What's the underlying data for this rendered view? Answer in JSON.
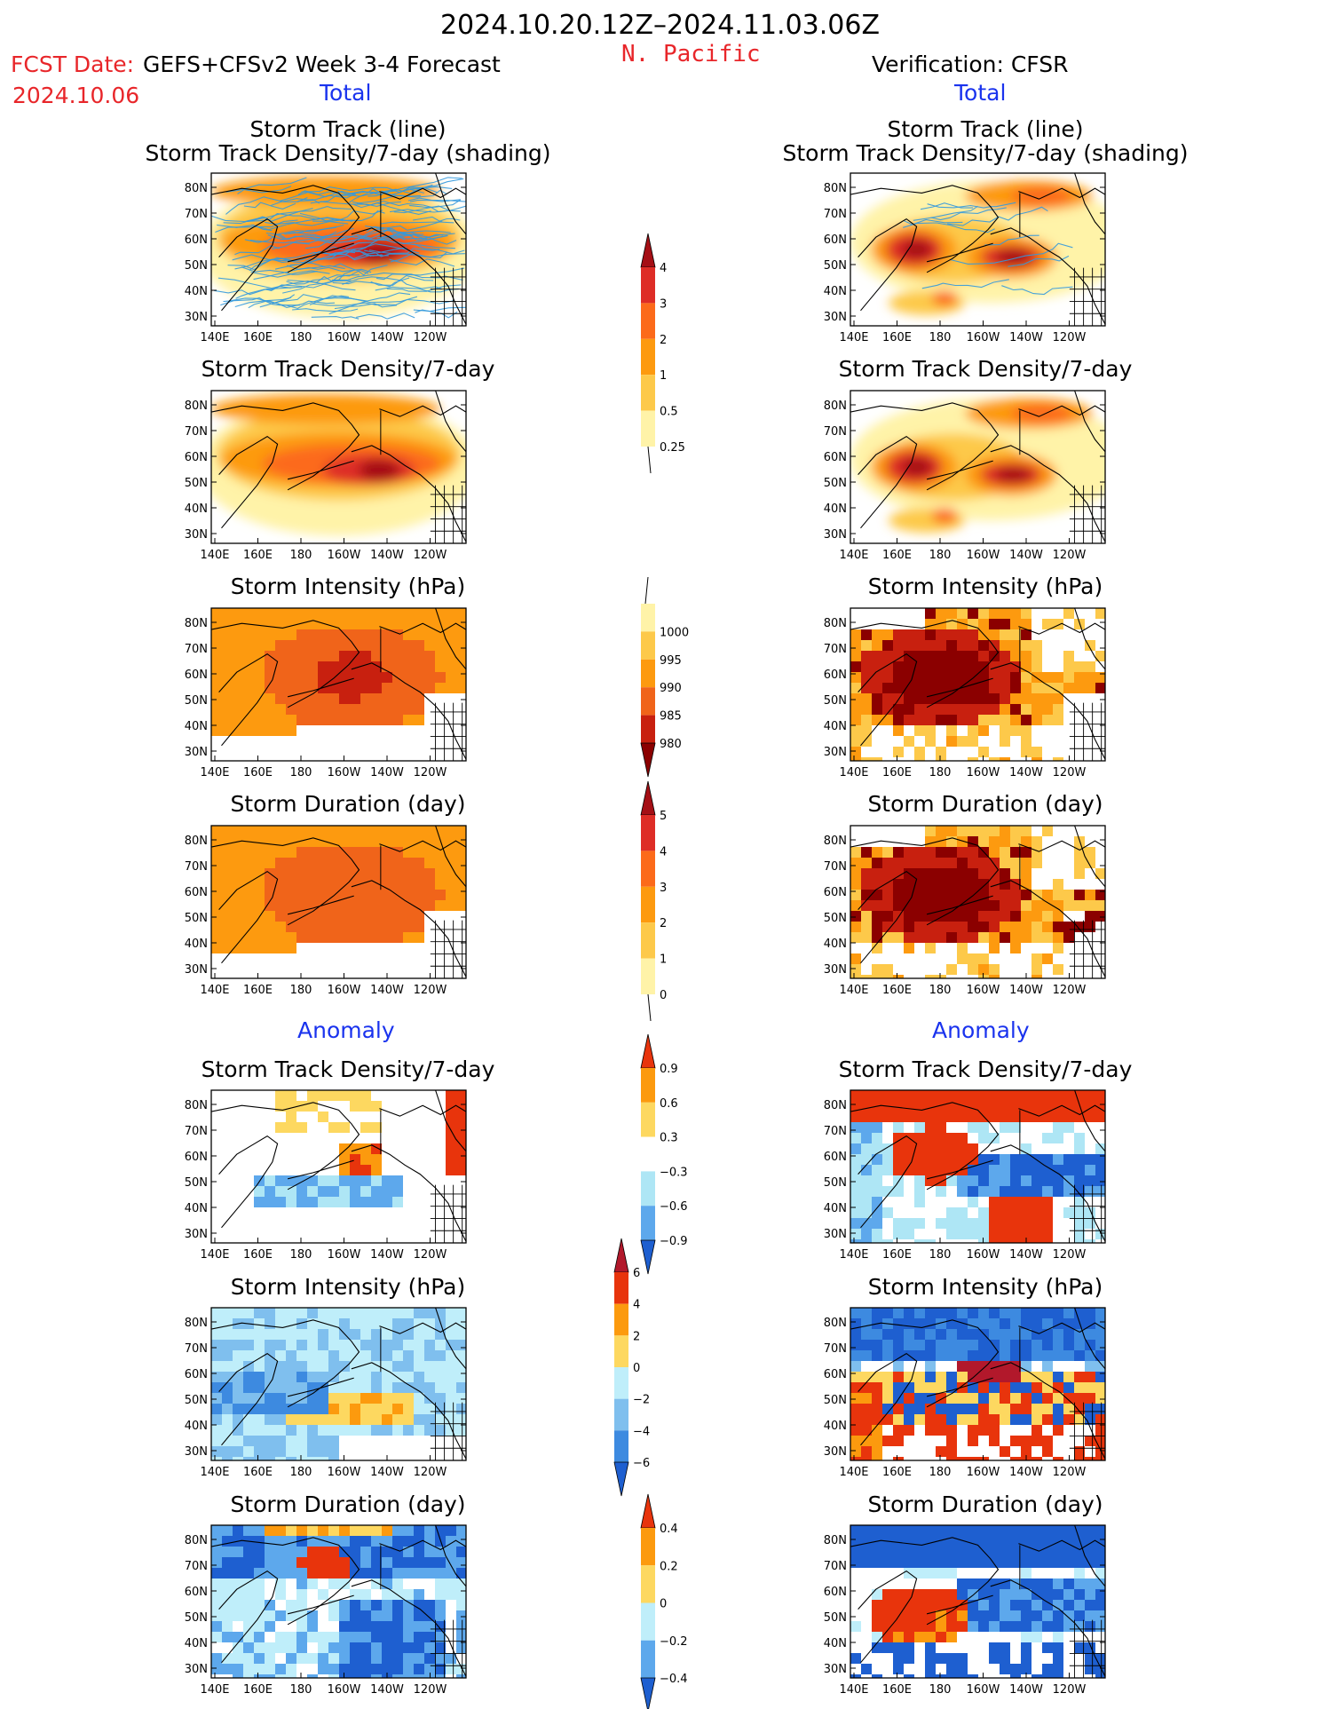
{
  "header": {
    "date_range": "2024.10.20.12Z–2024.11.03.06Z",
    "region": "N. Pacific",
    "fcst_label": "FCST Date:",
    "fcst_model": "GEFS+CFSv2 Week 3-4 Forecast",
    "fcst_date": "2024.10.06",
    "verification": "Verification: CFSR"
  },
  "sections": {
    "total_label": "Total",
    "anomaly_label": "Anomaly"
  },
  "panel_titles": {
    "track_line": "Storm Track (line)",
    "track_shading": "Storm Track Density/7-day (shading)",
    "density": "Storm Track Density/7-day",
    "intensity": "Storm Intensity (hPa)",
    "duration": "Storm Duration (day)"
  },
  "axes": {
    "lat_labels": [
      "80N",
      "70N",
      "60N",
      "50N",
      "40N",
      "30N"
    ],
    "lon_labels": [
      "140E",
      "160E",
      "180",
      "160W",
      "140W",
      "120W"
    ]
  },
  "colorbars": {
    "density_total": {
      "labels": [
        "4",
        "3",
        "2",
        "1",
        "0.5",
        "0.25"
      ],
      "colors": [
        "#a50f15",
        "#de2d26",
        "#fc6a1a",
        "#fd9a0f",
        "#fdc94a",
        "#fff3a8"
      ]
    },
    "intensity_total": {
      "labels": [
        "1000",
        "995",
        "990",
        "985",
        "980"
      ],
      "colors": [
        "#fff3a8",
        "#fdc94a",
        "#fd9a0f",
        "#f0641a",
        "#c8200f",
        "#8b0000"
      ]
    },
    "duration_total": {
      "labels": [
        "5",
        "4",
        "3",
        "2",
        "1",
        "0"
      ],
      "colors": [
        "#a50f15",
        "#de2d26",
        "#fc6a1a",
        "#fd9a0f",
        "#fdc94a",
        "#fff3a8"
      ]
    },
    "density_anomaly": {
      "labels": [
        "0.9",
        "0.6",
        "0.3",
        "−0.3",
        "−0.6",
        "−0.9"
      ],
      "colors": [
        "#e8340c",
        "#fc9a0e",
        "#fdd860",
        "#ffffff",
        "#aee6f5",
        "#5da8ec",
        "#1e5fd0"
      ]
    },
    "intensity_anomaly": {
      "labels": [
        "6",
        "4",
        "2",
        "0",
        "−2",
        "−4",
        "−6"
      ],
      "colors": [
        "#b2182b",
        "#e8340c",
        "#fc9a0e",
        "#fdd860",
        "#bfeefa",
        "#7fbfee",
        "#3d8ae0",
        "#1e5fd0"
      ]
    },
    "duration_anomaly": {
      "labels": [
        "0.4",
        "0.2",
        "0",
        "−0.2",
        "−0.4"
      ],
      "colors": [
        "#e8340c",
        "#fc9a0e",
        "#fdd860",
        "#bfeefa",
        "#5da8ec",
        "#1e5fd0"
      ]
    }
  },
  "colors": {
    "title": "#000000",
    "forecast_red": "#e8262a",
    "label_blue": "#1a33ee",
    "track_line": "#3399dd"
  }
}
